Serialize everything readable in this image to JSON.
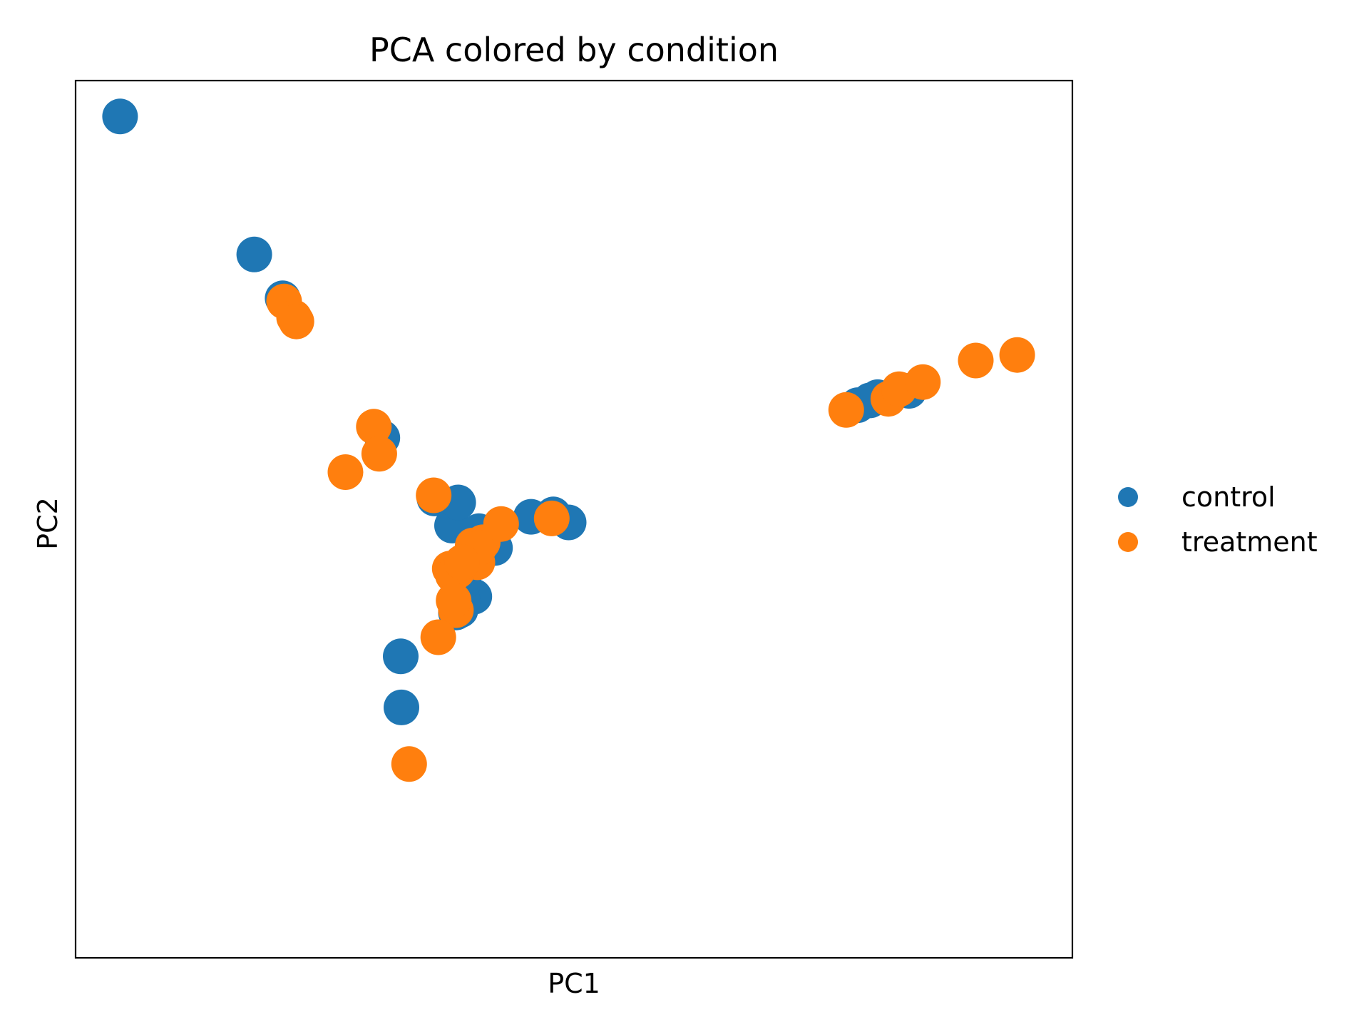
{
  "chart_data": {
    "type": "scatter",
    "title": "PCA colored by condition",
    "xlabel": "PC1",
    "ylabel": "PC2",
    "xticks": [],
    "yticks": [],
    "grid": false,
    "legend_position": "right",
    "xlim": [
      -10,
      120
    ],
    "ylim": [
      -10,
      100
    ],
    "series": [
      {
        "name": "control",
        "color": "#1f77b4",
        "points": [
          [
            -4.2,
            95.5
          ],
          [
            13.3,
            78.2
          ],
          [
            17.0,
            72.7
          ],
          [
            30.0,
            55.2
          ],
          [
            36.8,
            47.6
          ],
          [
            39.1,
            44.2
          ],
          [
            39.9,
            47.1
          ],
          [
            41.7,
            39.4
          ],
          [
            41.9,
            42.5
          ],
          [
            42.0,
            35.3
          ],
          [
            41.3,
            39.1
          ],
          [
            40.3,
            36.3
          ],
          [
            40.2,
            33.6
          ],
          [
            40.5,
            34.8
          ],
          [
            40.6,
            37.1
          ],
          [
            39.3,
            38.3
          ],
          [
            39.6,
            33.3
          ],
          [
            42.6,
            43.5
          ],
          [
            44.7,
            41.4
          ],
          [
            49.4,
            45.3
          ],
          [
            52.3,
            45.6
          ],
          [
            54.3,
            44.6
          ],
          [
            92.0,
            59.3
          ],
          [
            93.6,
            59.9
          ],
          [
            94.6,
            60.3
          ],
          [
            98.7,
            61.1
          ],
          [
            32.4,
            27.8
          ],
          [
            32.5,
            21.4
          ]
        ]
      },
      {
        "name": "treatment",
        "color": "#ff7f0e",
        "points": [
          [
            17.2,
            72.3
          ],
          [
            18.5,
            70.3
          ],
          [
            18.8,
            69.8
          ],
          [
            28.9,
            56.6
          ],
          [
            29.6,
            53.2
          ],
          [
            25.2,
            50.9
          ],
          [
            36.7,
            48.0
          ],
          [
            41.8,
            41.7
          ],
          [
            43.1,
            42.1
          ],
          [
            42.4,
            39.6
          ],
          [
            42.6,
            41.4
          ],
          [
            39.8,
            38.5
          ],
          [
            38.8,
            38.8
          ],
          [
            39.2,
            38.0
          ],
          [
            40.4,
            39.6
          ],
          [
            39.6,
            33.6
          ],
          [
            39.3,
            34.8
          ],
          [
            37.3,
            30.2
          ],
          [
            45.5,
            44.4
          ],
          [
            52.1,
            45.1
          ],
          [
            90.5,
            58.7
          ],
          [
            96.0,
            60.1
          ],
          [
            97.4,
            61.3
          ],
          [
            100.5,
            62.2
          ],
          [
            107.4,
            64.9
          ],
          [
            112.8,
            65.6
          ],
          [
            33.5,
            14.3
          ]
        ]
      }
    ]
  }
}
